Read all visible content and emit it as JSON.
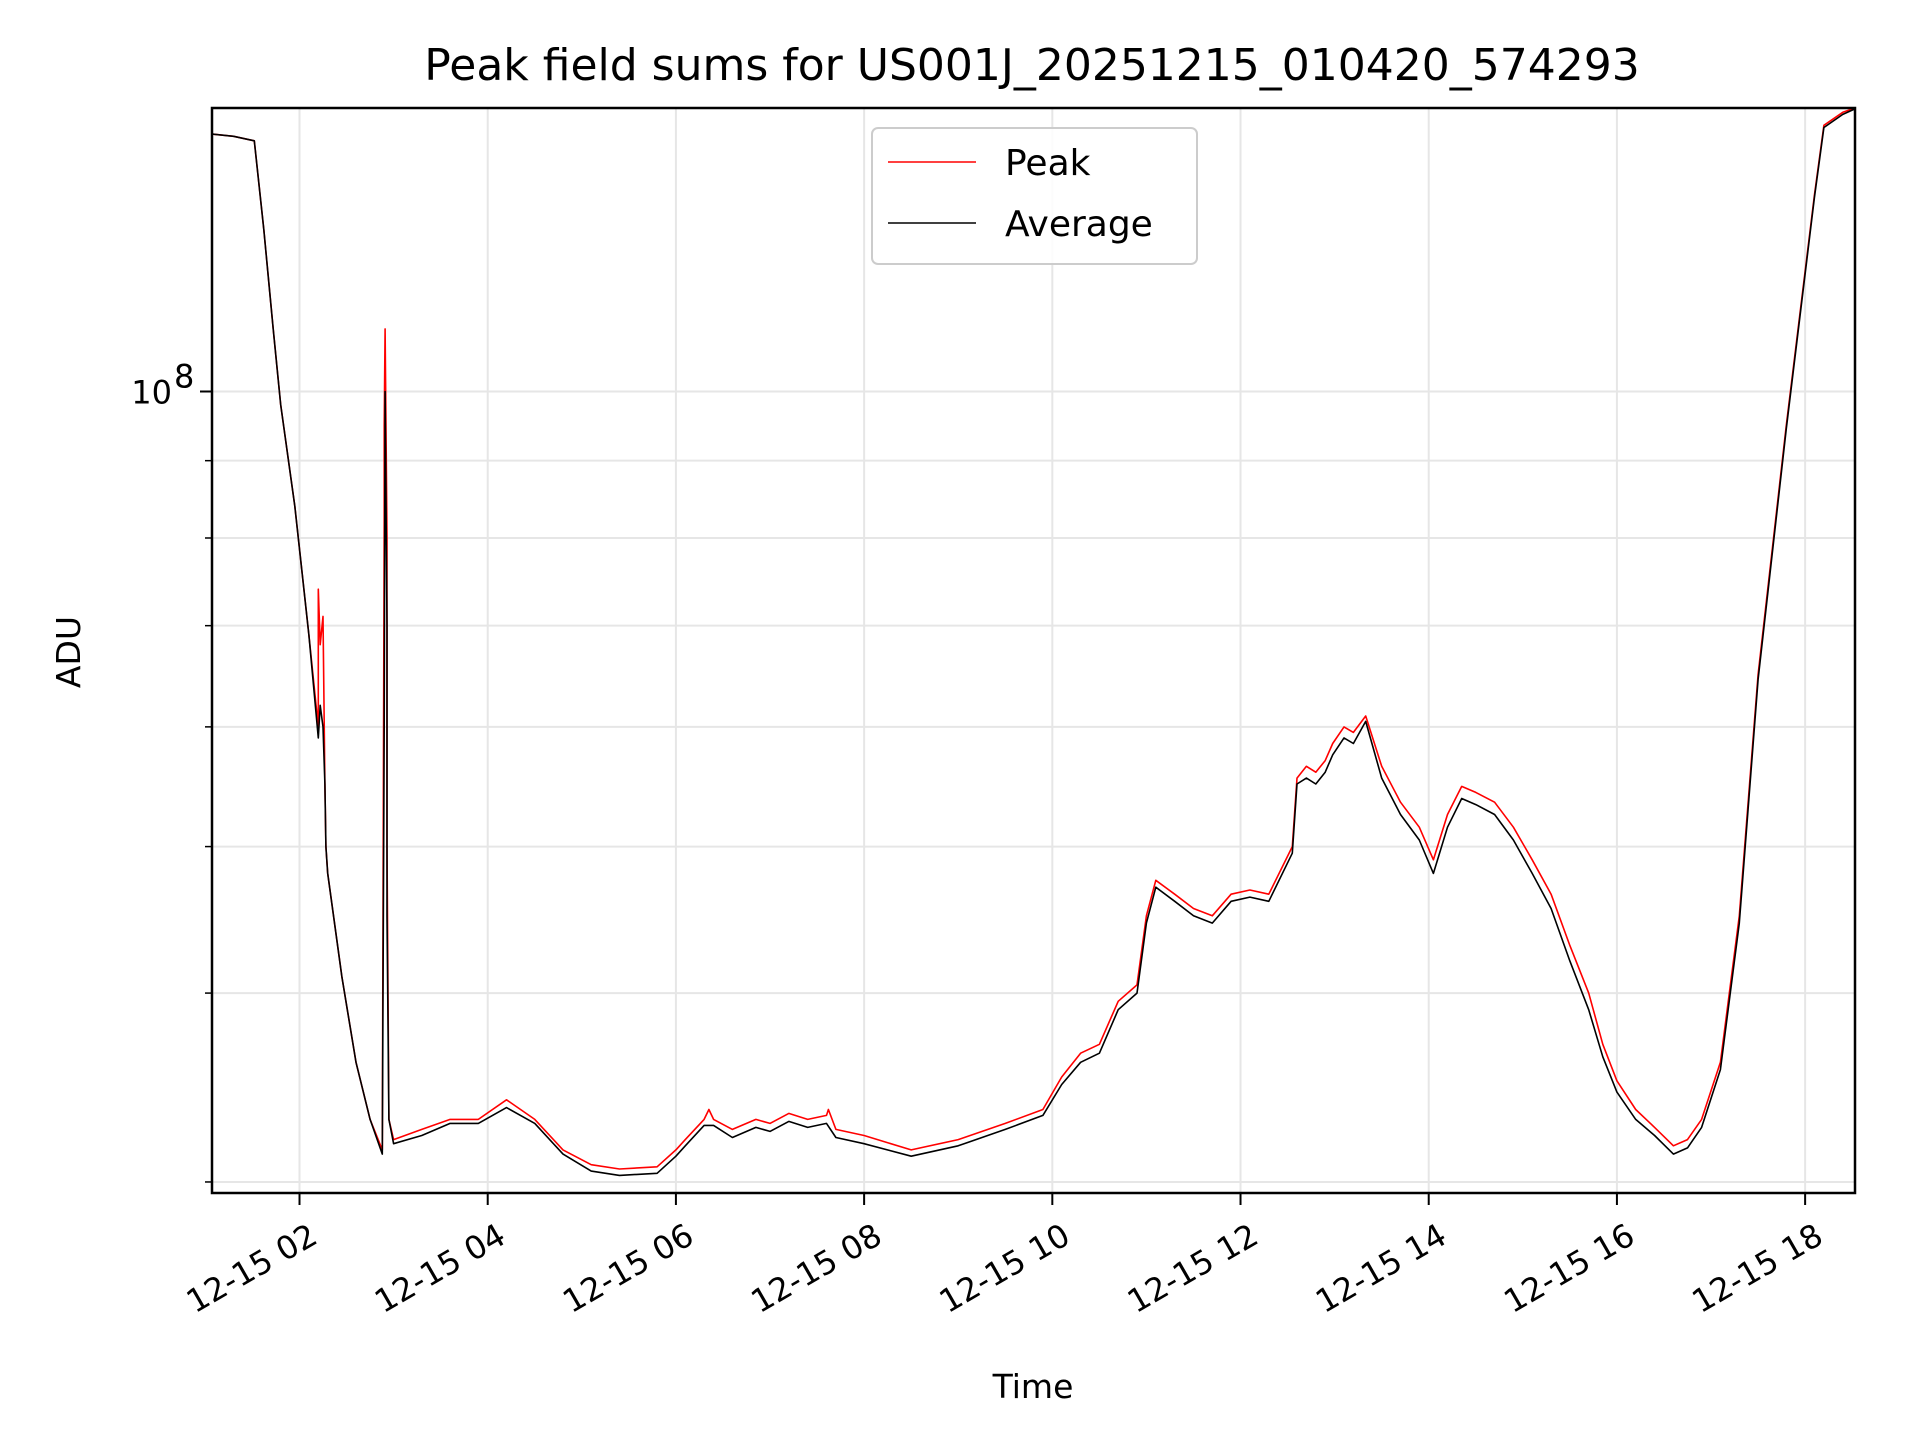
{
  "chart_data": {
    "type": "line",
    "title": "Peak field sums for US001J_20251215_010420_574293",
    "xlabel": "Time",
    "ylabel": "ADU",
    "y_scale": "log",
    "y_major_tick": {
      "exp": "8",
      "value": 100000000
    },
    "ylim": [
      29500000,
      154000000
    ],
    "xlim": [
      1.07,
      18.53
    ],
    "x_ticks": [
      2,
      4,
      6,
      8,
      10,
      12,
      14,
      16,
      18
    ],
    "x_tick_labels": [
      "12-15 02",
      "12-15 04",
      "12-15 06",
      "12-15 08",
      "12-15 10",
      "12-15 12",
      "12-15 14",
      "12-15 16",
      "12-15 18"
    ],
    "y_minor_ticks": [
      30000000,
      40000000,
      50000000,
      60000000,
      70000000,
      80000000,
      90000000
    ],
    "legend": {
      "position": "upper center",
      "entries": [
        {
          "label": "Peak",
          "color": "#ff0000"
        },
        {
          "label": "Average",
          "color": "#000000"
        }
      ]
    },
    "grid": true,
    "series": [
      {
        "name": "Peak",
        "color": "#ff0000",
        "x": [
          1.07,
          1.3,
          1.52,
          1.62,
          1.72,
          1.8,
          1.95,
          2.1,
          2.2,
          2.2,
          2.22,
          2.25,
          2.27,
          2.28,
          2.3,
          2.45,
          2.6,
          2.75,
          2.88,
          2.9,
          2.9,
          2.91,
          2.93,
          2.93,
          2.95,
          3.0,
          3.3,
          3.6,
          3.9,
          4.2,
          4.5,
          4.8,
          5.1,
          5.4,
          5.8,
          6.0,
          6.1,
          6.3,
          6.35,
          6.4,
          6.6,
          6.85,
          7.0,
          7.2,
          7.4,
          7.6,
          7.62,
          7.7,
          8.0,
          8.5,
          9.0,
          9.5,
          9.9,
          10.1,
          10.3,
          10.5,
          10.7,
          10.9,
          11.0,
          11.1,
          11.3,
          11.5,
          11.7,
          11.9,
          12.1,
          12.3,
          12.55,
          12.6,
          12.7,
          12.8,
          12.9,
          12.98,
          13.1,
          13.2,
          13.33,
          13.5,
          13.7,
          13.9,
          14.05,
          14.2,
          14.35,
          14.5,
          14.7,
          14.9,
          15.1,
          15.3,
          15.5,
          15.7,
          15.85,
          16.0,
          16.2,
          16.4,
          16.6,
          16.75,
          16.9,
          17.1,
          17.3,
          17.5,
          17.8,
          18.1,
          18.2,
          18.4,
          18.53
        ],
        "y": [
          148000000,
          147500000,
          146500000,
          128000000,
          110000000,
          98000000,
          84000000,
          69000000,
          60000000,
          74000000,
          68000000,
          71000000,
          55000000,
          50000000,
          48000000,
          41000000,
          36000000,
          33000000,
          31500000,
          82000000,
          95000000,
          110000000,
          80000000,
          50000000,
          33000000,
          32000000,
          32500000,
          33000000,
          33000000,
          34000000,
          33000000,
          31500000,
          30800000,
          30600000,
          30700000,
          31500000,
          32000000,
          33000000,
          33500000,
          33000000,
          32500000,
          33000000,
          32800000,
          33300000,
          33000000,
          33200000,
          33500000,
          32500000,
          32200000,
          31500000,
          32000000,
          32800000,
          33500000,
          35200000,
          36500000,
          37000000,
          39500000,
          40500000,
          45000000,
          47500000,
          46500000,
          45500000,
          45000000,
          46500000,
          46800000,
          46500000,
          50000000,
          55500000,
          56500000,
          56000000,
          57000000,
          58500000,
          60000000,
          59500000,
          61000000,
          56500000,
          53500000,
          51500000,
          49000000,
          52500000,
          54800000,
          54300000,
          53500000,
          51500000,
          49000000,
          46500000,
          43000000,
          40000000,
          37000000,
          35000000,
          33500000,
          32600000,
          31700000,
          32000000,
          33000000,
          36000000,
          45000000,
          65000000,
          95000000,
          135000000,
          150000000,
          153000000,
          154000000
        ]
      },
      {
        "name": "Average",
        "color": "#000000",
        "x": [
          1.07,
          1.3,
          1.52,
          1.62,
          1.72,
          1.8,
          1.95,
          2.1,
          2.2,
          2.22,
          2.25,
          2.27,
          2.28,
          2.3,
          2.45,
          2.6,
          2.75,
          2.88,
          2.9,
          2.91,
          2.93,
          2.93,
          2.95,
          3.0,
          3.3,
          3.6,
          3.9,
          4.2,
          4.5,
          4.8,
          5.1,
          5.4,
          5.8,
          6.0,
          6.1,
          6.3,
          6.4,
          6.6,
          6.85,
          7.0,
          7.2,
          7.4,
          7.6,
          7.7,
          8.0,
          8.5,
          9.0,
          9.5,
          9.9,
          10.1,
          10.3,
          10.5,
          10.7,
          10.9,
          11.0,
          11.1,
          11.3,
          11.5,
          11.7,
          11.9,
          12.1,
          12.3,
          12.55,
          12.6,
          12.7,
          12.8,
          12.9,
          12.98,
          13.1,
          13.2,
          13.33,
          13.5,
          13.7,
          13.9,
          14.05,
          14.2,
          14.35,
          14.5,
          14.7,
          14.9,
          15.1,
          15.3,
          15.5,
          15.7,
          15.85,
          16.0,
          16.2,
          16.4,
          16.6,
          16.75,
          16.9,
          17.1,
          17.3,
          17.5,
          17.8,
          18.1,
          18.2,
          18.4,
          18.53
        ],
        "y": [
          148000000,
          147500000,
          146500000,
          128000000,
          110000000,
          98000000,
          84000000,
          69000000,
          59000000,
          62000000,
          60000000,
          55000000,
          50000000,
          48000000,
          41000000,
          36000000,
          33000000,
          31300000,
          60000000,
          100000000,
          70000000,
          45000000,
          33000000,
          31800000,
          32200000,
          32800000,
          32800000,
          33600000,
          32800000,
          31300000,
          30500000,
          30300000,
          30400000,
          31200000,
          31700000,
          32700000,
          32700000,
          32100000,
          32600000,
          32400000,
          32900000,
          32600000,
          32800000,
          32100000,
          31800000,
          31200000,
          31700000,
          32500000,
          33200000,
          34800000,
          36000000,
          36500000,
          39000000,
          40000000,
          44500000,
          47000000,
          46000000,
          45000000,
          44500000,
          46000000,
          46300000,
          46000000,
          49500000,
          55000000,
          55500000,
          55000000,
          56000000,
          57500000,
          59000000,
          58500000,
          60500000,
          55500000,
          52500000,
          50500000,
          48000000,
          51500000,
          53800000,
          53300000,
          52500000,
          50500000,
          48000000,
          45500000,
          42000000,
          39000000,
          36300000,
          34400000,
          33000000,
          32200000,
          31300000,
          31600000,
          32600000,
          35600000,
          44500000,
          64500000,
          94500000,
          134500000,
          149500000,
          152500000,
          153800000
        ]
      }
    ]
  }
}
